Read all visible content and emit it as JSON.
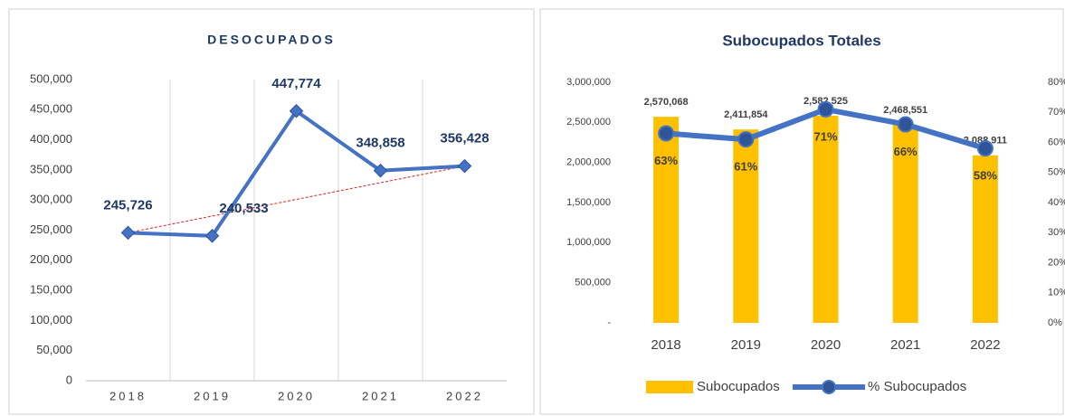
{
  "chart_data": [
    {
      "type": "line",
      "title": "DESOCUPADOS",
      "categories": [
        "2018",
        "2019",
        "2020",
        "2021",
        "2022"
      ],
      "values": [
        245726,
        240533,
        447774,
        348858,
        356428
      ],
      "value_labels": [
        "245,726",
        "240,533",
        "447,774",
        "348,858",
        "356,428"
      ],
      "color": "#4472c4",
      "trendline": true,
      "trendline_color": "#e02020",
      "ylim": [
        0,
        500000
      ],
      "yticks": [
        0,
        {
          "value": 50000,
          "label": "50,000"
        },
        {
          "value": 100000,
          "label": "100,000"
        },
        {
          "value": 150000,
          "label": "150,000"
        },
        {
          "value": 200000,
          "label": "200,000"
        },
        {
          "value": 250000,
          "label": "250,000"
        },
        {
          "value": 300000,
          "label": "300,000"
        },
        {
          "value": 350000,
          "label": "350,000"
        },
        {
          "value": 400000,
          "label": "400,000"
        },
        {
          "value": 450000,
          "label": "450,000"
        },
        {
          "value": 500000,
          "label": "500,000"
        }
      ],
      "grid": "x"
    },
    {
      "type": "bar_line",
      "title": "Subocupados Totales",
      "categories": [
        "2018",
        "2019",
        "2020",
        "2021",
        "2022"
      ],
      "series": [
        {
          "name": "Subocupados",
          "color": "#ffc000",
          "values": [
            2570068,
            2411854,
            2582525,
            2468551,
            2088911
          ],
          "value_labels": [
            "2,570,068",
            "2,411,854",
            "2,582,525",
            "2,468,551",
            "2,088,911"
          ]
        },
        {
          "name": "% Subocupados",
          "color": "#4472c4",
          "axis": "y2",
          "values": [
            63,
            61,
            71,
            66,
            58
          ],
          "value_labels": [
            "63%",
            "61%",
            "71%",
            "66%",
            "58%"
          ]
        }
      ],
      "ylim": [
        0,
        3000000
      ],
      "yticks": [
        {
          "value": 0,
          "label": "-"
        },
        {
          "value": 500000,
          "label": "500,000"
        },
        {
          "value": 1000000,
          "label": "1,000,000"
        },
        {
          "value": 1500000,
          "label": "1,500,000"
        },
        {
          "value": 2000000,
          "label": "2,000,000"
        },
        {
          "value": 2500000,
          "label": "2,500,000"
        },
        {
          "value": 3000000,
          "label": "3,000,000"
        }
      ],
      "y2lim": [
        0,
        80
      ],
      "y2ticks": [
        {
          "value": 0,
          "label": "0%"
        },
        {
          "value": 10,
          "label": "10%"
        },
        {
          "value": 20,
          "label": "20%"
        },
        {
          "value": 30,
          "label": "30%"
        },
        {
          "value": 40,
          "label": "40%"
        },
        {
          "value": 50,
          "label": "50%"
        },
        {
          "value": 60,
          "label": "60%"
        },
        {
          "value": 70,
          "label": "70%"
        },
        {
          "value": 80,
          "label": "80%"
        }
      ],
      "legend": "bottom"
    }
  ]
}
